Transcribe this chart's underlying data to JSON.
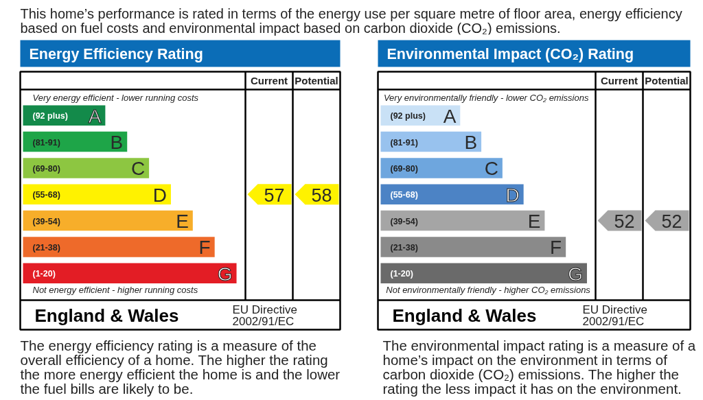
{
  "chart_data": [
    {
      "type": "other",
      "subtitle": "This home’s performance is rated in terms of the energy use per square metre of floor area, energy efficiency based on fuel costs and environmental impact based on carbon dioxide (CO₂) emissions.",
      "title": "Energy Efficiency Rating",
      "categories": [
        "A",
        "B",
        "C",
        "D",
        "E",
        "F",
        "G"
      ],
      "value_labels": [
        "(92 plus)",
        "(81-91)",
        "(69-80)",
        "(55-68)",
        "(39-54)",
        "(21-38)",
        "(1-20)"
      ],
      "colors": [
        "#138a4a",
        "#1ea548",
        "#8dc641",
        "#fff200",
        "#f7ae2a",
        "#ee6a2a",
        "#e31d25"
      ],
      "series": [
        {
          "values": [
            null,
            null,
            null,
            57,
            null,
            null,
            null
          ],
          "color": "#fff200"
        },
        {
          "values": [
            null,
            null,
            null,
            58,
            null,
            null,
            null
          ],
          "color": "#fff200"
        }
      ],
      "data_labels": true,
      "annotations": [
        "Current",
        "Potential",
        "Very energy efficient - lower running costs",
        "Not energy efficient - higher running costs",
        "England & Wales",
        "EU Directive 2002/91/EC",
        "The energy efficiency rating is a measure of the overall efficiency of a home. The higher the rating the more energy efficient the home is and the lower the fuel bills are likely to be."
      ]
    },
    {
      "type": "other",
      "title": "Environmental Impact (CO₂) Rating",
      "categories": [
        "A",
        "B",
        "C",
        "D",
        "E",
        "F",
        "G"
      ],
      "value_labels": [
        "(92 plus)",
        "(81-91)",
        "(69-80)",
        "(55-68)",
        "(39-54)",
        "(21-38)",
        "(1-20)"
      ],
      "colors": [
        "#c9e1f6",
        "#98c2ee",
        "#6ea6de",
        "#4c83c5",
        "#a5a5a5",
        "#8a8a8a",
        "#6a6a6a"
      ],
      "series": [
        {
          "values": [
            null,
            null,
            null,
            null,
            52,
            null,
            null
          ],
          "color": "#a5a5a5"
        },
        {
          "values": [
            null,
            null,
            null,
            null,
            52,
            null,
            null
          ],
          "color": "#a5a5a5"
        }
      ],
      "data_labels": true,
      "annotations": [
        "Current",
        "Potential",
        "Very environmentally friendly - lower CO₂ emissions",
        "Not environmentally friendly - higher CO₂ emissions",
        "England & Wales",
        "EU Directive 2002/91/EC",
        "The environmental impact rating is a measure of a home’s impact on the environment in terms of carbon dioxide (CO₂) emissions. The higher the rating the less impact it has on the environment."
      ]
    }
  ]
}
